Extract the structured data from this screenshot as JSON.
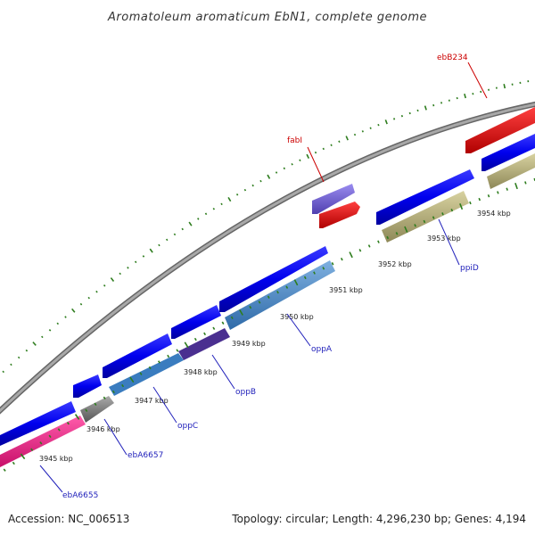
{
  "title": "Aromatoleum aromaticum EbN1, complete genome",
  "footer": {
    "accession": "Accession: NC_006513",
    "summary": "Topology: circular; Length: 4,296,230 bp; Genes: 4,194"
  },
  "ticks": [
    "3945 kbp",
    "3946 kbp",
    "3947 kbp",
    "3948 kbp",
    "3949 kbp",
    "3950 kbp",
    "3951 kbp",
    "3952 kbp",
    "3953 kbp",
    "3954 kbp"
  ],
  "genes": [
    {
      "name": "ebA6655",
      "color": "#2222bb"
    },
    {
      "name": "ebA6657",
      "color": "#2222bb"
    },
    {
      "name": "oppC",
      "color": "#2222bb"
    },
    {
      "name": "oppB",
      "color": "#2222bb"
    },
    {
      "name": "oppA",
      "color": "#2222bb"
    },
    {
      "name": "ppiD",
      "color": "#2222bb"
    },
    {
      "name": "fabI",
      "color": "#cc0000"
    },
    {
      "name": "ebB234",
      "color": "#cc0000"
    }
  ],
  "colors": {
    "backbone": "#888888",
    "cds_forward": "#0000ee",
    "cds_reverse_gene": "#4a86c0",
    "rna_red": "#ee0000",
    "trna_purple": "#7060cc",
    "misc_khaki": "#b8b27a",
    "pink": "#ee1f8a",
    "tick_green": "#2e7d1e",
    "label_blue": "#2222bb",
    "label_red": "#cc0000"
  }
}
